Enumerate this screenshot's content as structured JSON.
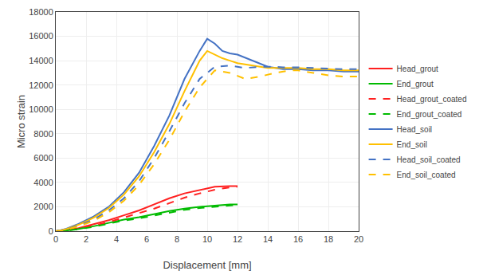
{
  "chart_data": {
    "type": "line",
    "xlabel": "Displacement [mm]",
    "ylabel": "Micro strain",
    "xlim": [
      0,
      20
    ],
    "ylim": [
      0,
      18000
    ],
    "xticks": [
      0,
      2,
      4,
      6,
      8,
      10,
      12,
      14,
      16,
      18,
      20
    ],
    "yticks": [
      0,
      2000,
      4000,
      6000,
      8000,
      10000,
      12000,
      14000,
      16000,
      18000
    ],
    "grid": true,
    "legend": "right",
    "series": [
      {
        "name": "Head_grout",
        "color": "#FF2020",
        "line_style": "solid",
        "x": [
          0,
          0.3,
          0.7,
          1.5,
          2.5,
          3.5,
          4.5,
          5.5,
          6.5,
          7.5,
          8.5,
          9.5,
          10.5,
          11.5,
          12
        ],
        "values": [
          0,
          30,
          80,
          250,
          550,
          900,
          1300,
          1700,
          2200,
          2700,
          3100,
          3400,
          3650,
          3700,
          3700
        ]
      },
      {
        "name": "End_grout",
        "color": "#00BB00",
        "line_style": "solid",
        "x": [
          0,
          0.3,
          0.7,
          1.5,
          2.5,
          3.5,
          4.5,
          5.5,
          6.5,
          7.5,
          8.5,
          9.5,
          10.5,
          11.5,
          12
        ],
        "values": [
          0,
          20,
          60,
          180,
          400,
          680,
          950,
          1150,
          1400,
          1650,
          1850,
          2000,
          2100,
          2200,
          2200
        ]
      },
      {
        "name": "Head_grout_coated",
        "color": "#FF2020",
        "line_style": "dashed",
        "x": [
          0,
          0.3,
          0.7,
          1.5,
          2.5,
          3.5,
          4.5,
          5.5,
          6.5,
          7.5,
          8.5,
          9.5,
          10.5,
          11.5,
          12
        ],
        "values": [
          0,
          25,
          65,
          200,
          450,
          750,
          1100,
          1450,
          1850,
          2300,
          2750,
          3100,
          3400,
          3600,
          3650
        ]
      },
      {
        "name": "End_grout_coated",
        "color": "#00BB00",
        "line_style": "dashed",
        "x": [
          0,
          0.3,
          0.7,
          1.5,
          2.5,
          3.5,
          4.5,
          5.5,
          6.5,
          7.5,
          8.5,
          9.5,
          10.5,
          11.5,
          12
        ],
        "values": [
          0,
          15,
          50,
          160,
          360,
          620,
          870,
          1050,
          1300,
          1550,
          1750,
          1900,
          2000,
          2100,
          2150
        ]
      },
      {
        "name": "Head_soil",
        "color": "#4472C4",
        "line_style": "solid",
        "x": [
          0,
          0.3,
          0.7,
          1.5,
          2.5,
          3.5,
          4.5,
          5.5,
          6.5,
          7.5,
          8.5,
          9.5,
          10,
          10.5,
          11,
          11.5,
          12,
          13,
          14,
          15,
          16,
          17,
          18,
          19,
          20
        ],
        "values": [
          0,
          60,
          200,
          600,
          1200,
          2000,
          3200,
          4800,
          7000,
          9500,
          12500,
          14800,
          15800,
          15400,
          14800,
          14600,
          14500,
          14000,
          13500,
          13300,
          13300,
          13200,
          13200,
          13100,
          13100
        ]
      },
      {
        "name": "End_soil",
        "color": "#FFC000",
        "line_style": "solid",
        "x": [
          0,
          0.3,
          0.7,
          1.5,
          2.5,
          3.5,
          4.5,
          5.5,
          6.5,
          7.5,
          8.5,
          9.5,
          10,
          10.5,
          11,
          11.5,
          12,
          13,
          14,
          15,
          16,
          17,
          18,
          19,
          20
        ],
        "values": [
          0,
          50,
          170,
          520,
          1100,
          1900,
          3000,
          4500,
          6500,
          8800,
          11500,
          14000,
          14800,
          14500,
          14200,
          14000,
          13800,
          13600,
          13400,
          13400,
          13400,
          13300,
          13300,
          13200,
          13200
        ]
      },
      {
        "name": "Head_soil_coated",
        "color": "#4472C4",
        "line_style": "dashed",
        "x": [
          0,
          0.3,
          0.7,
          1.5,
          2.5,
          3.5,
          4.5,
          5.5,
          6.5,
          7.5,
          8.5,
          9.5,
          10.5,
          11.5,
          12.5,
          13.5,
          14,
          14.5,
          15,
          15.5,
          16,
          17,
          18,
          19,
          20
        ],
        "values": [
          0,
          45,
          150,
          450,
          950,
          1700,
          2700,
          4100,
          6000,
          8200,
          10500,
          12500,
          13500,
          13600,
          13400,
          13500,
          13500,
          13500,
          13450,
          13450,
          13450,
          13400,
          13350,
          13300,
          13300
        ]
      },
      {
        "name": "End_soil_coated",
        "color": "#FFC000",
        "line_style": "dashed",
        "x": [
          0,
          0.3,
          0.7,
          1.5,
          2.5,
          3.5,
          4.5,
          5.5,
          6.5,
          7.5,
          8.5,
          9.5,
          10.5,
          11.5,
          12.5,
          13.5,
          14.5,
          15.5,
          16,
          17,
          18,
          19,
          20
        ],
        "values": [
          0,
          40,
          130,
          400,
          850,
          1550,
          2500,
          3800,
          5500,
          7500,
          9800,
          11800,
          13200,
          13000,
          12500,
          12700,
          13000,
          13200,
          13200,
          13000,
          12800,
          12700,
          12700
        ]
      }
    ]
  }
}
